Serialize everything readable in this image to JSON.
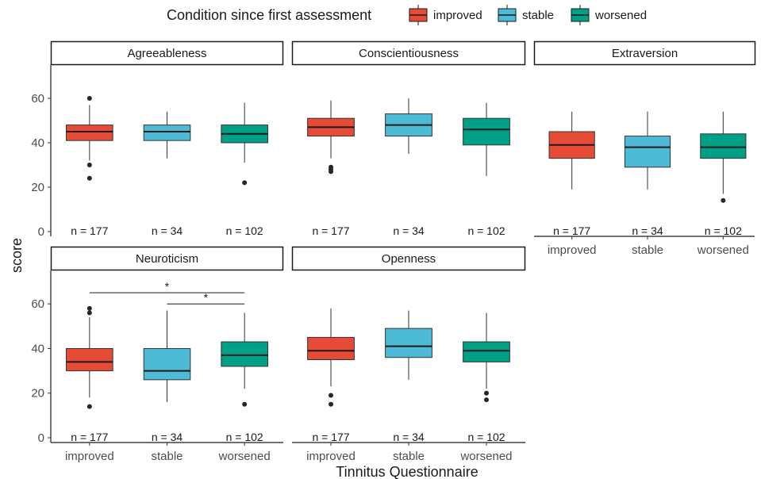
{
  "chart_data": {
    "type": "box",
    "legend": {
      "title": "Condition since first assessment",
      "position": "top",
      "entries": [
        {
          "label": "improved",
          "color": "#E64B35"
        },
        {
          "label": "stable",
          "color": "#4DBBD5"
        },
        {
          "label": "worsened",
          "color": "#00A087"
        }
      ]
    },
    "xlabel": "Tinnitus Questionnaire",
    "ylabel": "score",
    "ylim": [
      0,
      75
    ],
    "yticks": [
      0,
      20,
      40,
      60
    ],
    "categories": [
      "improved",
      "stable",
      "worsened"
    ],
    "n_labels": [
      "n = 177",
      "n = 34",
      "n = 102"
    ],
    "panels": [
      {
        "title": "Agreeableness",
        "boxes": [
          {
            "category": "improved",
            "whisker_low": 32,
            "q1": 41,
            "median": 45,
            "q3": 48,
            "whisker_high": 57,
            "outliers": [
              60,
              30,
              24
            ]
          },
          {
            "category": "stable",
            "whisker_low": 33,
            "q1": 41,
            "median": 45,
            "q3": 48,
            "whisker_high": 54,
            "outliers": []
          },
          {
            "category": "worsened",
            "whisker_low": 31,
            "q1": 40,
            "median": 44,
            "q3": 48,
            "whisker_high": 58,
            "outliers": [
              22
            ]
          }
        ],
        "significance": []
      },
      {
        "title": "Conscientiousness",
        "boxes": [
          {
            "category": "improved",
            "whisker_low": 33,
            "q1": 43,
            "median": 47,
            "q3": 51,
            "whisker_high": 59,
            "outliers": [
              29,
              28,
              27
            ]
          },
          {
            "category": "stable",
            "whisker_low": 35,
            "q1": 43,
            "median": 48,
            "q3": 53,
            "whisker_high": 60,
            "outliers": []
          },
          {
            "category": "worsened",
            "whisker_low": 25,
            "q1": 39,
            "median": 46,
            "q3": 51,
            "whisker_high": 58,
            "outliers": []
          }
        ],
        "significance": []
      },
      {
        "title": "Extraversion",
        "boxes": [
          {
            "category": "improved",
            "whisker_low": 19,
            "q1": 33,
            "median": 39,
            "q3": 45,
            "whisker_high": 54,
            "outliers": []
          },
          {
            "category": "stable",
            "whisker_low": 19,
            "q1": 29,
            "median": 38,
            "q3": 43,
            "whisker_high": 54,
            "outliers": []
          },
          {
            "category": "worsened",
            "whisker_low": 17,
            "q1": 33,
            "median": 38,
            "q3": 44,
            "whisker_high": 54,
            "outliers": [
              14
            ]
          }
        ],
        "significance": []
      },
      {
        "title": "Neuroticism",
        "boxes": [
          {
            "category": "improved",
            "whisker_low": 18,
            "q1": 30,
            "median": 34,
            "q3": 40,
            "whisker_high": 54,
            "outliers": [
              58,
              56,
              14
            ]
          },
          {
            "category": "stable",
            "whisker_low": 16,
            "q1": 26,
            "median": 30,
            "q3": 40,
            "whisker_high": 57,
            "outliers": []
          },
          {
            "category": "worsened",
            "whisker_low": 22,
            "q1": 32,
            "median": 37,
            "q3": 43,
            "whisker_high": 56,
            "outliers": [
              15
            ]
          }
        ],
        "significance": [
          {
            "from": "improved",
            "to": "worsened",
            "y": 65,
            "label": "*"
          },
          {
            "from": "stable",
            "to": "worsened",
            "y": 60,
            "label": "*"
          }
        ]
      },
      {
        "title": "Openness",
        "boxes": [
          {
            "category": "improved",
            "whisker_low": 23,
            "q1": 35,
            "median": 39,
            "q3": 45,
            "whisker_high": 58,
            "outliers": [
              19,
              15
            ]
          },
          {
            "category": "stable",
            "whisker_low": 26,
            "q1": 36,
            "median": 41,
            "q3": 49,
            "whisker_high": 57,
            "outliers": []
          },
          {
            "category": "worsened",
            "whisker_low": 22,
            "q1": 34,
            "median": 39,
            "q3": 43,
            "whisker_high": 56,
            "outliers": [
              20,
              17
            ]
          }
        ],
        "significance": []
      }
    ]
  }
}
